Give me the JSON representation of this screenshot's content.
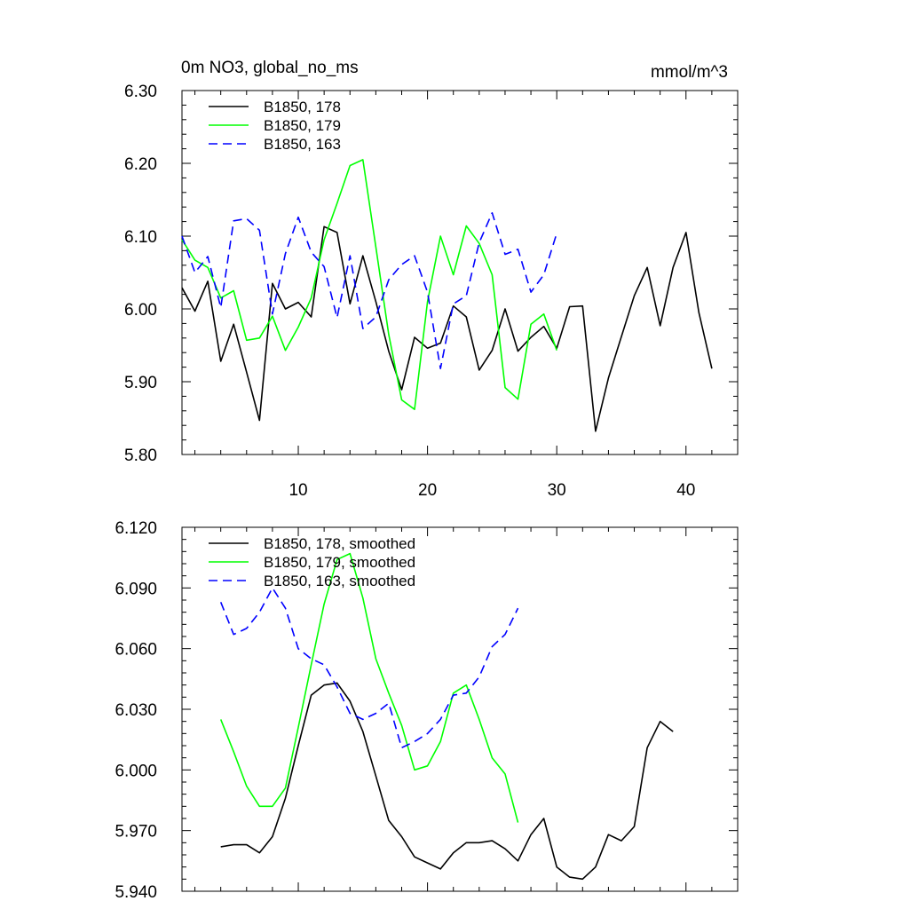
{
  "header": {
    "title": "0m NO3, global_no_ms",
    "units": "mmol/m^3"
  },
  "chart_data": [
    {
      "type": "line",
      "xlim": [
        1,
        44
      ],
      "ylim": [
        5.8,
        6.3
      ],
      "xticks": [
        10,
        20,
        30,
        40
      ],
      "xtick_labels": [
        "10",
        "20",
        "30",
        "40"
      ],
      "yticks": [
        5.8,
        5.9,
        6.0,
        6.1,
        6.2,
        6.3
      ],
      "ytick_labels": [
        "5.80",
        "5.90",
        "6.00",
        "6.10",
        "6.20",
        "6.30"
      ],
      "legend_location": "top-left",
      "series": [
        {
          "name": "B1850, 178",
          "color": "#000000",
          "dash": "solid",
          "x": [
            1,
            2,
            3,
            4,
            5,
            6,
            7,
            8,
            9,
            10,
            11,
            12,
            13,
            14,
            15,
            16,
            17,
            18,
            19,
            20,
            21,
            22,
            23,
            24,
            25,
            26,
            27,
            28,
            29,
            30,
            31,
            32,
            33,
            34,
            35,
            36,
            37,
            38,
            39,
            40,
            41,
            42
          ],
          "values": [
            6.029,
            5.997,
            6.038,
            5.928,
            5.979,
            5.913,
            5.847,
            6.035,
            6.0,
            6.009,
            5.989,
            6.113,
            6.105,
            6.007,
            6.073,
            6.01,
            5.942,
            5.889,
            5.961,
            5.946,
            5.953,
            6.004,
            5.989,
            5.916,
            5.943,
            6.0,
            5.942,
            5.961,
            5.976,
            5.946,
            6.003,
            6.004,
            5.832,
            5.905,
            5.962,
            6.018,
            6.057,
            5.977,
            6.057,
            6.105,
            5.995,
            5.918
          ]
        },
        {
          "name": "B1850, 179",
          "color": "#00ff00",
          "dash": "solid",
          "x": [
            1,
            2,
            3,
            4,
            5,
            6,
            7,
            8,
            9,
            10,
            11,
            12,
            13,
            14,
            15,
            16,
            17,
            18,
            19,
            20,
            21,
            22,
            23,
            24,
            25,
            26,
            27,
            28,
            29,
            30
          ],
          "values": [
            6.095,
            6.067,
            6.057,
            6.015,
            6.025,
            5.957,
            5.96,
            5.99,
            5.943,
            5.975,
            6.015,
            6.095,
            6.145,
            6.197,
            6.205,
            6.085,
            5.965,
            5.875,
            5.862,
            6.01,
            6.1,
            6.047,
            6.114,
            6.09,
            6.047,
            5.892,
            5.876,
            5.979,
            5.993,
            5.943
          ]
        },
        {
          "name": "B1850, 163",
          "color": "#0000ff",
          "dash": "dashed",
          "x": [
            1,
            2,
            3,
            4,
            5,
            6,
            7,
            8,
            9,
            10,
            11,
            12,
            13,
            14,
            15,
            16,
            17,
            18,
            19,
            20,
            21,
            22,
            23,
            24,
            25,
            26,
            27,
            28,
            29,
            30
          ],
          "values": [
            6.1,
            6.05,
            6.072,
            6.002,
            6.121,
            6.124,
            6.108,
            5.993,
            6.076,
            6.126,
            6.078,
            6.058,
            5.988,
            6.073,
            5.973,
            5.989,
            6.04,
            6.061,
            6.073,
            6.023,
            5.918,
            6.007,
            6.018,
            6.091,
            6.132,
            6.075,
            6.082,
            6.023,
            6.047,
            6.104
          ]
        }
      ]
    },
    {
      "type": "line",
      "xlim": [
        1,
        44
      ],
      "ylim": [
        5.94,
        6.12
      ],
      "xticks": [
        10,
        20,
        30,
        40
      ],
      "yticks": [
        5.94,
        5.97,
        6.0,
        6.03,
        6.06,
        6.09,
        6.12
      ],
      "ytick_labels": [
        "5.940",
        "5.970",
        "6.000",
        "6.030",
        "6.060",
        "6.090",
        "6.120"
      ],
      "legend_location": "top-left",
      "series": [
        {
          "name": "B1850, 178, smoothed",
          "color": "#000000",
          "dash": "solid",
          "x": [
            4,
            5,
            6,
            7,
            8,
            9,
            10,
            11,
            12,
            13,
            14,
            15,
            16,
            17,
            18,
            19,
            20,
            21,
            22,
            23,
            24,
            25,
            26,
            27,
            28,
            29,
            30,
            31,
            32,
            33,
            34,
            35,
            36,
            37,
            38,
            39
          ],
          "values": [
            5.962,
            5.963,
            5.963,
            5.959,
            5.967,
            5.986,
            6.012,
            6.037,
            6.042,
            6.043,
            6.034,
            6.019,
            5.997,
            5.975,
            5.967,
            5.957,
            5.954,
            5.951,
            5.959,
            5.964,
            5.964,
            5.965,
            5.961,
            5.955,
            5.968,
            5.976,
            5.952,
            5.947,
            5.946,
            5.952,
            5.968,
            5.965,
            5.972,
            6.011,
            6.024,
            6.019
          ]
        },
        {
          "name": "B1850, 179, smoothed",
          "color": "#00ff00",
          "dash": "solid",
          "x": [
            4,
            5,
            6,
            7,
            8,
            9,
            10,
            11,
            12,
            13,
            14,
            15,
            16,
            17,
            18,
            19,
            20,
            21,
            22,
            23,
            24,
            25,
            26,
            27
          ],
          "values": [
            6.025,
            6.009,
            5.992,
            5.982,
            5.982,
            5.991,
            6.021,
            6.052,
            6.082,
            6.104,
            6.107,
            6.085,
            6.055,
            6.038,
            6.022,
            6.0,
            6.002,
            6.014,
            6.038,
            6.042,
            6.025,
            6.006,
            5.998,
            5.974
          ]
        },
        {
          "name": "B1850, 163, smoothed",
          "color": "#0000ff",
          "dash": "dashed",
          "x": [
            4,
            5,
            6,
            7,
            8,
            9,
            10,
            11,
            12,
            13,
            14,
            15,
            16,
            17,
            18,
            19,
            20,
            21,
            22,
            23,
            24,
            25,
            26,
            27
          ],
          "values": [
            6.083,
            6.067,
            6.07,
            6.078,
            6.09,
            6.08,
            6.06,
            6.055,
            6.052,
            6.041,
            6.028,
            6.025,
            6.028,
            6.033,
            6.011,
            6.014,
            6.018,
            6.025,
            6.037,
            6.038,
            6.046,
            6.061,
            6.067,
            6.08
          ]
        }
      ]
    }
  ]
}
